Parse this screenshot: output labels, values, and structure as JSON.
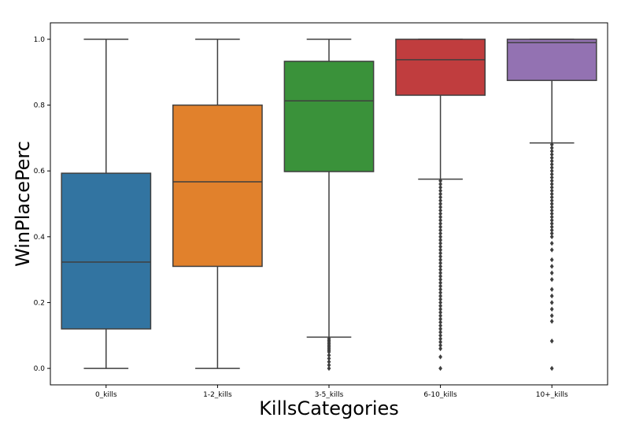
{
  "chart_data": {
    "type": "box",
    "xlabel": "KillsCategories",
    "ylabel": "WinPlacePerc",
    "ylim": [
      -0.05,
      1.05
    ],
    "yticks": [
      "0.0",
      "0.2",
      "0.4",
      "0.6",
      "0.8",
      "1.0"
    ],
    "grid": false,
    "categories": [
      "0_kills",
      "1-2_kills",
      "3-5_kills",
      "6-10_kills",
      "10+_kills"
    ],
    "boxes": [
      {
        "category": "0_kills",
        "color": "#3274a1",
        "whisker_low": 0.0,
        "q1": 0.12,
        "median": 0.323,
        "q3": 0.593,
        "whisker_high": 1.0,
        "outliers": []
      },
      {
        "category": "1-2_kills",
        "color": "#e1812c",
        "whisker_low": 0.0,
        "q1": 0.31,
        "median": 0.567,
        "q3": 0.8,
        "whisker_high": 1.0,
        "outliers": []
      },
      {
        "category": "3-5_kills",
        "color": "#3a923a",
        "whisker_low": 0.095,
        "q1": 0.598,
        "median": 0.813,
        "q3": 0.933,
        "whisker_high": 1.0,
        "outliers": [
          0.0,
          0.01,
          0.02,
          0.03,
          0.04,
          0.05,
          0.055,
          0.06,
          0.065,
          0.07,
          0.075,
          0.08,
          0.085,
          0.09
        ]
      },
      {
        "category": "6-10_kills",
        "color": "#c03d3e",
        "whisker_low": 0.575,
        "q1": 0.83,
        "median": 0.938,
        "q3": 1.0,
        "whisker_high": 1.0,
        "outliers": [
          0.0,
          0.035,
          0.06,
          0.07,
          0.08,
          0.09,
          0.1,
          0.11,
          0.12,
          0.13,
          0.14,
          0.15,
          0.16,
          0.17,
          0.18,
          0.19,
          0.2,
          0.21,
          0.22,
          0.23,
          0.24,
          0.25,
          0.26,
          0.27,
          0.28,
          0.29,
          0.3,
          0.31,
          0.32,
          0.33,
          0.34,
          0.35,
          0.36,
          0.37,
          0.38,
          0.39,
          0.4,
          0.41,
          0.42,
          0.43,
          0.44,
          0.45,
          0.46,
          0.47,
          0.48,
          0.49,
          0.5,
          0.51,
          0.52,
          0.53,
          0.54,
          0.55,
          0.56,
          0.57
        ]
      },
      {
        "category": "10+_kills",
        "color": "#9372b2",
        "whisker_low": 0.685,
        "q1": 0.875,
        "median": 0.99,
        "q3": 1.0,
        "whisker_high": 1.0,
        "outliers": [
          0.0,
          0.083,
          0.143,
          0.16,
          0.18,
          0.2,
          0.22,
          0.24,
          0.27,
          0.29,
          0.31,
          0.33,
          0.36,
          0.38,
          0.4,
          0.41,
          0.42,
          0.43,
          0.44,
          0.45,
          0.46,
          0.47,
          0.48,
          0.49,
          0.5,
          0.51,
          0.52,
          0.53,
          0.54,
          0.55,
          0.56,
          0.57,
          0.58,
          0.59,
          0.6,
          0.61,
          0.62,
          0.63,
          0.64,
          0.65,
          0.66,
          0.67,
          0.68
        ]
      }
    ]
  }
}
